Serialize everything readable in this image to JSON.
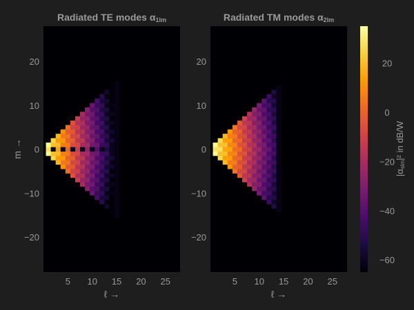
{
  "figure": {
    "background": "#1e1e1e",
    "text_color": "#9a9a9a",
    "plot_background": "#000004"
  },
  "chart_data": [
    {
      "type": "heatmap",
      "title": "Radiated TE modes α",
      "title_subscript": "1lm",
      "xlabel": "ℓ →",
      "ylabel": "m →",
      "xlim": [
        0,
        28
      ],
      "ylim": [
        -28,
        28
      ],
      "xticks": [
        5,
        10,
        15,
        20,
        25
      ],
      "yticks": [
        -20,
        -10,
        0,
        10,
        20
      ],
      "lmax": 14,
      "edge_lmax": 15,
      "dB_top": 34,
      "dB_drop_per_l": 6.8,
      "dB_drop_per_m": 0.8,
      "checker_amplitude_dB": 6,
      "m0_null_dB": -60,
      "background_dB": -65
    },
    {
      "type": "heatmap",
      "title": "Radiated TM modes α",
      "title_subscript": "2lm",
      "xlabel": "ℓ →",
      "ylabel": "",
      "xlim": [
        0,
        28
      ],
      "ylim": [
        -28,
        28
      ],
      "xticks": [
        5,
        10,
        15,
        20,
        25
      ],
      "yticks": [
        -20,
        -10,
        0,
        10,
        20
      ],
      "lmax": 13,
      "edge_lmax": 14,
      "dB_top": 34,
      "dB_drop_per_l": 6.4,
      "dB_drop_per_m": 0.8,
      "checker_amplitude_dB": 6,
      "m0_null_dB": null,
      "background_dB": -65
    }
  ],
  "colorbar": {
    "label": "|α",
    "label_subscript": "slm",
    "label_suffix": "|² in dB/W",
    "range": [
      -65,
      35
    ],
    "ticks": [
      20,
      0,
      -20,
      -40,
      -60
    ],
    "colormap": "inferno",
    "colormap_stops": [
      "#000004",
      "#1b0c41",
      "#4a0c6b",
      "#781c6d",
      "#a52c60",
      "#cf4446",
      "#ed6925",
      "#fb9b06",
      "#f7d13d",
      "#fcffa4"
    ]
  }
}
